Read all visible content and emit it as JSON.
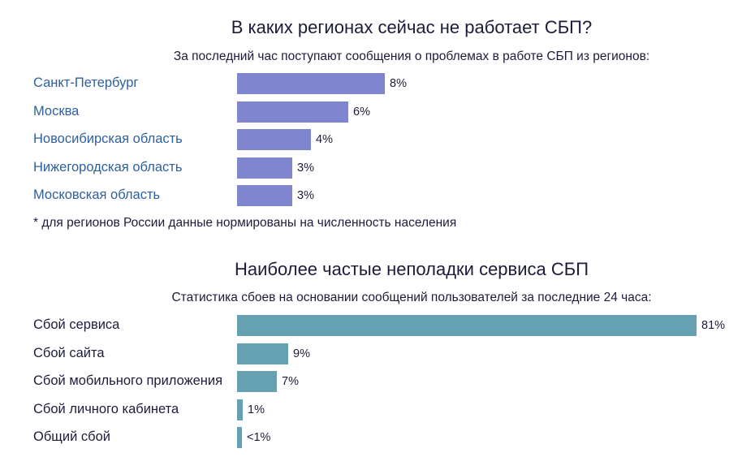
{
  "regions": {
    "title": "В каких регионах сейчас не работает СБП?",
    "subtitle": "За последний час поступают сообщения о проблемах в работе СБП из регионов:",
    "footnote": "* для регионов России данные нормированы на численность населения",
    "bar_color": "#7f85cf"
  },
  "issues": {
    "title": "Наиболее частые неполадки сервиса СБП",
    "subtitle": "Статистика сбоев на основании сообщений пользователей за последние 24 часа:",
    "bar_color": "#66a1b1"
  },
  "chart_data": [
    {
      "type": "bar",
      "orientation": "horizontal",
      "title": "В каких регионах сейчас не работает СБП?",
      "subtitle": "За последний час поступают сообщения о проблемах в работе СБП из регионов:",
      "categories": [
        "Санкт-Петербург",
        "Москва",
        "Новосибирская область",
        "Нижегородская область",
        "Московская область"
      ],
      "values": [
        8,
        6,
        4,
        3,
        3
      ],
      "value_labels": [
        "8%",
        "6%",
        "4%",
        "3%",
        "3%"
      ],
      "categories_are_links": true,
      "grid": false
    },
    {
      "type": "bar",
      "orientation": "horizontal",
      "title": "Наиболее частые неполадки сервиса СБП",
      "subtitle": "Статистика сбоев на основании сообщений пользователей за последние 24 часа:",
      "categories": [
        "Сбой сервиса",
        "Сбой сайта",
        "Сбой мобильного приложения",
        "Сбой личного кабинета",
        "Общий сбой"
      ],
      "values": [
        81,
        9,
        7,
        1,
        0.9
      ],
      "value_labels": [
        "81%",
        "9%",
        "7%",
        "1%",
        "<1%"
      ],
      "categories_are_links": false,
      "grid": false
    }
  ]
}
